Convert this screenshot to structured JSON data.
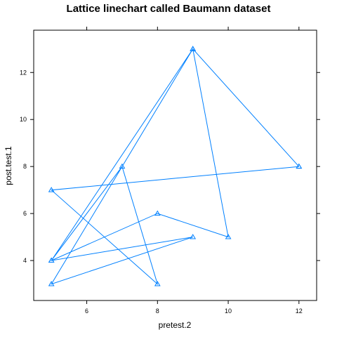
{
  "chart_data": {
    "type": "line",
    "title": "Lattice linechart called Baumann dataset",
    "xlabel": "pretest.2",
    "ylabel": "post.test.1",
    "xlim": [
      4.5,
      12.5
    ],
    "ylim": [
      2.3,
      13.8
    ],
    "x_ticks": [
      6,
      8,
      10,
      12
    ],
    "y_ticks": [
      4,
      6,
      8,
      10,
      12
    ],
    "x_tick_labels": [
      "6",
      "8",
      "10",
      "12"
    ],
    "y_tick_labels": [
      "4",
      "6",
      "8",
      "10",
      "12"
    ],
    "grid": false,
    "legend": "none",
    "marker": "triangle-open",
    "series": [
      {
        "color": "#0080ff",
        "points": [
          {
            "x": 12,
            "y": 8
          },
          {
            "x": 5,
            "y": 7
          },
          {
            "x": 8,
            "y": 3
          },
          {
            "x": 7,
            "y": 8
          },
          {
            "x": 5,
            "y": 4
          },
          {
            "x": 9,
            "y": 5
          },
          {
            "x": 5,
            "y": 3
          },
          {
            "x": 9,
            "y": 13
          },
          {
            "x": 10,
            "y": 5
          },
          {
            "x": 8,
            "y": 6
          },
          {
            "x": 5,
            "y": 4
          },
          {
            "x": 9,
            "y": 13
          },
          {
            "x": 12,
            "y": 8
          }
        ]
      }
    ]
  }
}
